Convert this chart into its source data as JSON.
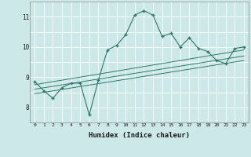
{
  "xlabel": "Humidex (Indice chaleur)",
  "bg_color": "#cce8e8",
  "grid_color": "#ffffff",
  "line_color": "#2d7a6a",
  "x_main": [
    0,
    1,
    2,
    3,
    4,
    5,
    6,
    7,
    8,
    9,
    10,
    11,
    12,
    13,
    14,
    15,
    16,
    17,
    18,
    19,
    20,
    21,
    22,
    23
  ],
  "y_main": [
    8.85,
    8.55,
    8.3,
    8.65,
    8.8,
    8.8,
    7.75,
    8.9,
    9.9,
    10.05,
    10.4,
    11.05,
    11.2,
    11.05,
    10.35,
    10.45,
    10.0,
    10.3,
    9.95,
    9.85,
    9.55,
    9.45,
    9.95,
    10.0
  ],
  "reg_lines": [
    {
      "x": [
        0,
        23
      ],
      "y": [
        8.45,
        9.55
      ]
    },
    {
      "x": [
        0,
        23
      ],
      "y": [
        8.6,
        9.7
      ]
    },
    {
      "x": [
        0,
        23
      ],
      "y": [
        8.75,
        9.9
      ]
    }
  ],
  "ylim": [
    7.5,
    11.5
  ],
  "xlim": [
    -0.5,
    23.5
  ],
  "yticks": [
    8,
    9,
    10,
    11
  ],
  "xticks": [
    0,
    1,
    2,
    3,
    4,
    5,
    6,
    7,
    8,
    9,
    10,
    11,
    12,
    13,
    14,
    15,
    16,
    17,
    18,
    19,
    20,
    21,
    22,
    23
  ]
}
